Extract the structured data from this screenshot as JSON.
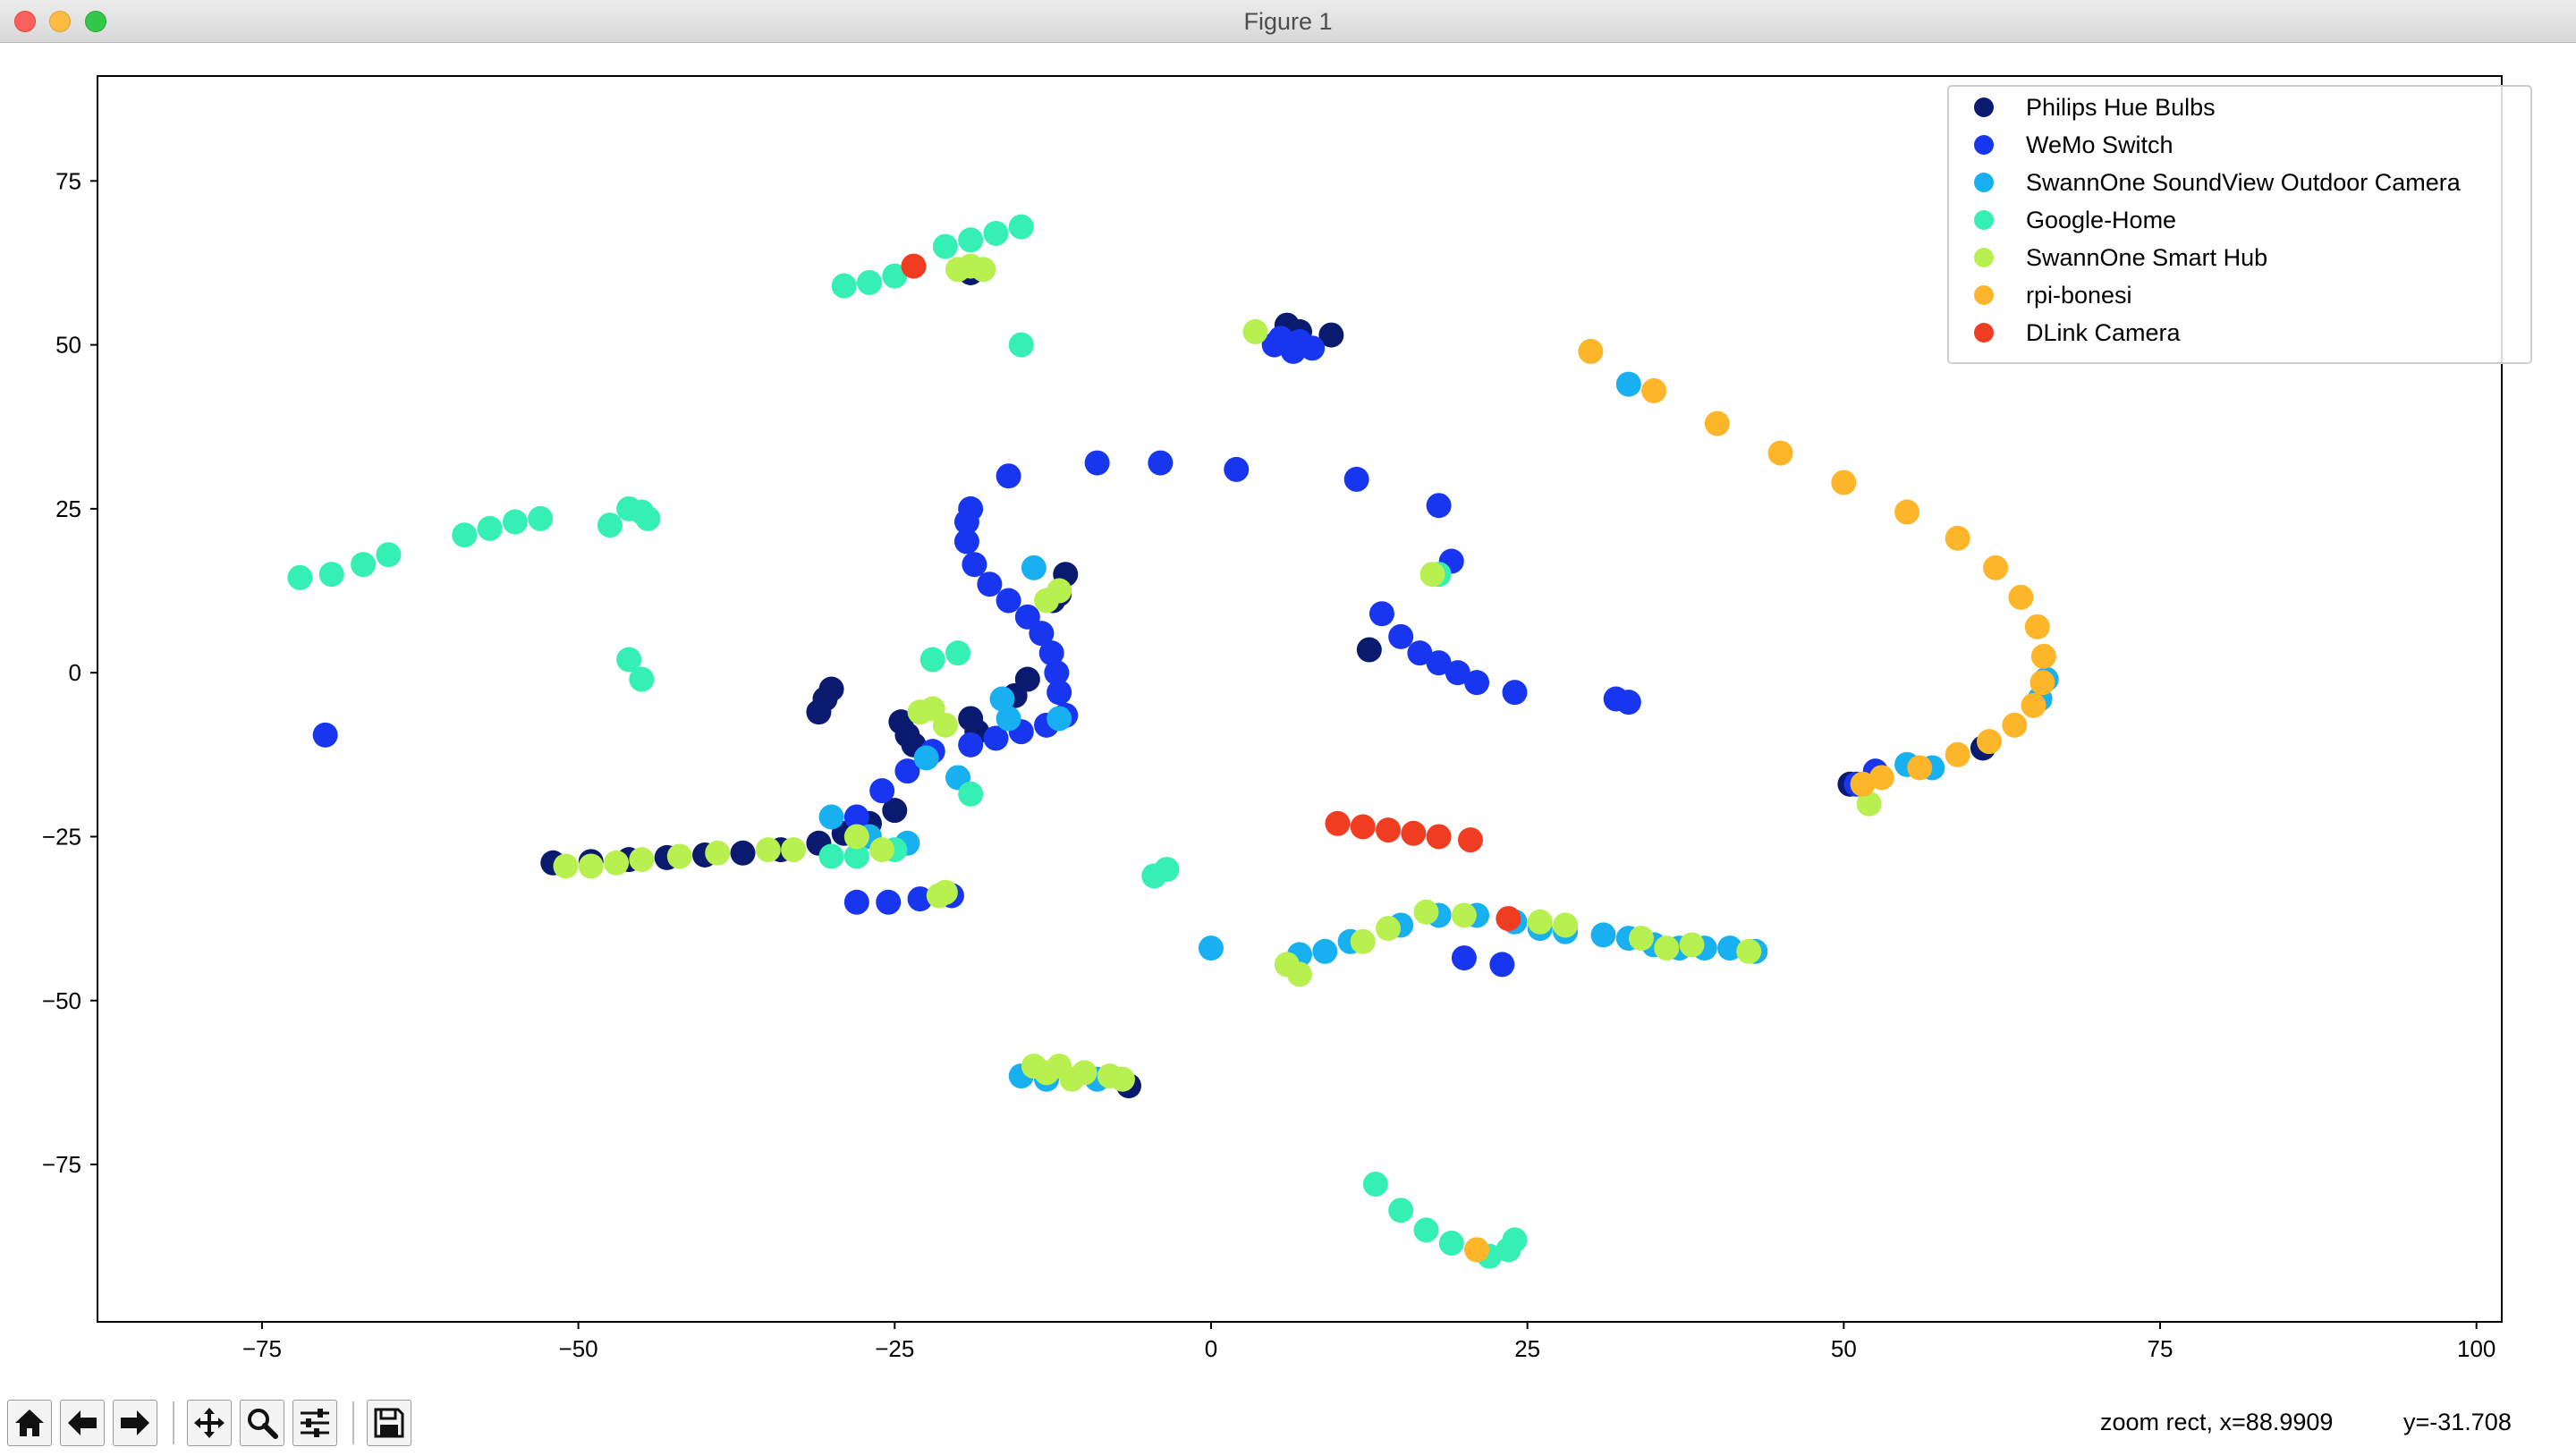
{
  "window": {
    "title": "Figure 1"
  },
  "toolbar": {
    "buttons": [
      {
        "name": "home-button",
        "icon": "home-icon"
      },
      {
        "name": "back-button",
        "icon": "arrow-left-icon"
      },
      {
        "name": "forward-button",
        "icon": "arrow-right-icon"
      },
      {
        "name": "pan-button",
        "icon": "move-icon"
      },
      {
        "name": "zoom-button",
        "icon": "magnifier-icon"
      },
      {
        "name": "configure-subplots-button",
        "icon": "sliders-icon"
      },
      {
        "name": "save-button",
        "icon": "floppy-disk-icon"
      }
    ],
    "mode_text": "zoom rect, x=88.9909",
    "y_text": "y=-31.708"
  },
  "chart_data": {
    "type": "scatter",
    "title": "",
    "xlabel": "",
    "ylabel": "",
    "xlim": [
      -88,
      102
    ],
    "ylim": [
      -99,
      91
    ],
    "x_ticks": [
      -75,
      -50,
      -25,
      0,
      25,
      50,
      75,
      100
    ],
    "y_ticks": [
      -75,
      -50,
      -25,
      0,
      25,
      50,
      75
    ],
    "x_tick_labels": [
      "−75",
      "−50",
      "−25",
      "0",
      "25",
      "50",
      "75",
      "100"
    ],
    "y_tick_labels": [
      "−75",
      "−50",
      "−25",
      "0",
      "25",
      "50",
      "75"
    ],
    "grid": false,
    "legend_position": "upper right",
    "series": [
      {
        "name": "Philips Hue Bulbs",
        "color": "#0a1a6e",
        "points": [
          [
            -52,
            -29
          ],
          [
            -49,
            -28.8
          ],
          [
            -46,
            -28.5
          ],
          [
            -43,
            -28.2
          ],
          [
            -40,
            -27.8
          ],
          [
            -37,
            -27.5
          ],
          [
            -34,
            -27
          ],
          [
            -31,
            -26
          ],
          [
            -29,
            -24.5
          ],
          [
            -27,
            -23
          ],
          [
            -25,
            -21
          ],
          [
            -31,
            -6
          ],
          [
            -30.5,
            -4
          ],
          [
            -30,
            -2.5
          ],
          [
            -24.5,
            -7.5
          ],
          [
            -24,
            -9.5
          ],
          [
            -23.5,
            -11
          ],
          [
            -19,
            -7
          ],
          [
            -18.5,
            -9
          ],
          [
            -15.5,
            -3.5
          ],
          [
            -14.5,
            -1
          ],
          [
            -11.5,
            15
          ],
          [
            -12,
            12
          ],
          [
            -12.5,
            11
          ],
          [
            -19,
            61
          ],
          [
            6,
            53
          ],
          [
            7,
            52
          ],
          [
            9.5,
            51.5
          ],
          [
            12.5,
            3.5
          ],
          [
            50.5,
            -17
          ],
          [
            61,
            -11.5
          ],
          [
            -6.5,
            -63
          ]
        ]
      },
      {
        "name": "WeMo Switch",
        "color": "#1836ef",
        "points": [
          [
            -28,
            -22
          ],
          [
            -26,
            -18
          ],
          [
            -24,
            -15
          ],
          [
            -22,
            -12
          ],
          [
            -19,
            -11
          ],
          [
            -17,
            -10
          ],
          [
            -15,
            -9
          ],
          [
            -13,
            -8
          ],
          [
            -11.5,
            -6.5
          ],
          [
            -12,
            -3
          ],
          [
            -12.2,
            0
          ],
          [
            -12.6,
            3
          ],
          [
            -13.4,
            6
          ],
          [
            -14.5,
            8.5
          ],
          [
            -16,
            11
          ],
          [
            -17.5,
            13.5
          ],
          [
            -18.7,
            16.5
          ],
          [
            -19.3,
            20
          ],
          [
            -19.3,
            23
          ],
          [
            -19,
            25
          ],
          [
            -28,
            -35
          ],
          [
            -25.5,
            -35
          ],
          [
            -23,
            -34.5
          ],
          [
            -20.5,
            -34
          ],
          [
            -70,
            -9.5
          ],
          [
            -16,
            30
          ],
          [
            -9,
            32
          ],
          [
            -4,
            32
          ],
          [
            2,
            31
          ],
          [
            11.5,
            29.5
          ],
          [
            18,
            25.5
          ],
          [
            19,
            17
          ],
          [
            5,
            50
          ],
          [
            6.5,
            49
          ],
          [
            8,
            49.5
          ],
          [
            5.5,
            51
          ],
          [
            7,
            50.5
          ],
          [
            13.5,
            9
          ],
          [
            15,
            5.5
          ],
          [
            16.5,
            3
          ],
          [
            18,
            1.5
          ],
          [
            19.5,
            0
          ],
          [
            21,
            -1.5
          ],
          [
            24,
            -3
          ],
          [
            32,
            -4
          ],
          [
            33,
            -4.5
          ],
          [
            23,
            -44.5
          ],
          [
            20,
            -43.5
          ],
          [
            51,
            -17
          ],
          [
            52.5,
            -15
          ]
        ]
      },
      {
        "name": "SwannOne SoundView Outdoor Camera",
        "color": "#18b0f0",
        "points": [
          [
            -30,
            -22
          ],
          [
            -27,
            -25
          ],
          [
            -24,
            -26
          ],
          [
            -22.5,
            -13
          ],
          [
            -16.5,
            -4
          ],
          [
            -16,
            -7
          ],
          [
            -20,
            -16
          ],
          [
            -14,
            16
          ],
          [
            -12,
            -7
          ],
          [
            0,
            -42
          ],
          [
            7,
            -43
          ],
          [
            9,
            -42.5
          ],
          [
            11,
            -41
          ],
          [
            15,
            -38.5
          ],
          [
            18,
            -37
          ],
          [
            21,
            -37
          ],
          [
            24,
            -38
          ],
          [
            26,
            -39
          ],
          [
            28,
            -39.5
          ],
          [
            31,
            -40
          ],
          [
            33,
            -40.5
          ],
          [
            35,
            -41.5
          ],
          [
            37,
            -42
          ],
          [
            39,
            -42
          ],
          [
            41,
            -42
          ],
          [
            43,
            -42.5
          ],
          [
            -15,
            -61.5
          ],
          [
            -9,
            -62
          ],
          [
            -13,
            -62
          ],
          [
            33,
            44
          ],
          [
            66,
            -1
          ],
          [
            65.5,
            -4
          ],
          [
            55,
            -14
          ],
          [
            57,
            -14.5
          ]
        ]
      },
      {
        "name": "Google-Home",
        "color": "#36f0b3",
        "points": [
          [
            -72,
            14.5
          ],
          [
            -69.5,
            15
          ],
          [
            -67,
            16.5
          ],
          [
            -65,
            18
          ],
          [
            -59,
            21
          ],
          [
            -57,
            22
          ],
          [
            -55,
            23
          ],
          [
            -53,
            23.5
          ],
          [
            -47.5,
            22.5
          ],
          [
            -46,
            25
          ],
          [
            -45,
            24.5
          ],
          [
            -44.5,
            23.5
          ],
          [
            -46,
            2
          ],
          [
            -45,
            -1
          ],
          [
            -29,
            59
          ],
          [
            -27,
            59.5
          ],
          [
            -25,
            60.5
          ],
          [
            -21,
            65
          ],
          [
            -19,
            66
          ],
          [
            -17,
            67
          ],
          [
            -15,
            68
          ],
          [
            -15,
            50
          ],
          [
            -22,
            2
          ],
          [
            -20,
            3
          ],
          [
            -19,
            -18.5
          ],
          [
            -30,
            -28
          ],
          [
            -28,
            -28
          ],
          [
            -25,
            -27
          ],
          [
            -3.5,
            -30
          ],
          [
            -4.5,
            -31
          ],
          [
            13,
            -78
          ],
          [
            15,
            -82
          ],
          [
            17,
            -85
          ],
          [
            19,
            -87
          ],
          [
            22,
            -89
          ],
          [
            23.5,
            -88
          ],
          [
            24,
            -86.5
          ],
          [
            18,
            15
          ]
        ]
      },
      {
        "name": "SwannOne Smart Hub",
        "color": "#b7f04f",
        "points": [
          [
            -51,
            -29.5
          ],
          [
            -49,
            -29.5
          ],
          [
            -47,
            -29
          ],
          [
            -45,
            -28.5
          ],
          [
            -42,
            -28
          ],
          [
            -39,
            -27.5
          ],
          [
            -35,
            -27
          ],
          [
            -33,
            -27
          ],
          [
            -28,
            -25
          ],
          [
            -23,
            -6
          ],
          [
            -22,
            -5.5
          ],
          [
            -21,
            -8
          ],
          [
            -26,
            -27
          ],
          [
            -21.5,
            -34
          ],
          [
            -21,
            -33.5
          ],
          [
            -13,
            11
          ],
          [
            -12,
            12.5
          ],
          [
            -20,
            61.5
          ],
          [
            -18,
            61.5
          ],
          [
            -19,
            62
          ],
          [
            -14,
            -60
          ],
          [
            -12,
            -60
          ],
          [
            -10,
            -61
          ],
          [
            -8,
            -61.5
          ],
          [
            -7,
            -62
          ],
          [
            -11,
            -62
          ],
          [
            -13,
            -61
          ],
          [
            6,
            -44.5
          ],
          [
            7,
            -46
          ],
          [
            12,
            -41
          ],
          [
            14,
            -39
          ],
          [
            17,
            -36.5
          ],
          [
            20,
            -37
          ],
          [
            26,
            -38
          ],
          [
            28,
            -38.5
          ],
          [
            34,
            -40.5
          ],
          [
            36,
            -42
          ],
          [
            38,
            -41.5
          ],
          [
            42.5,
            -42.5
          ],
          [
            52,
            -20
          ],
          [
            3.5,
            52
          ],
          [
            17.5,
            15
          ]
        ]
      },
      {
        "name": "rpi-bonesi",
        "color": "#fdb52a",
        "points": [
          [
            30,
            49
          ],
          [
            35,
            43
          ],
          [
            40,
            38
          ],
          [
            45,
            33.5
          ],
          [
            50,
            29
          ],
          [
            55,
            24.5
          ],
          [
            59,
            20.5
          ],
          [
            62,
            16
          ],
          [
            64,
            11.5
          ],
          [
            65.3,
            7
          ],
          [
            65.8,
            2.5
          ],
          [
            65.7,
            -1.5
          ],
          [
            65,
            -5
          ],
          [
            63.5,
            -8
          ],
          [
            61.5,
            -10.5
          ],
          [
            59,
            -12.5
          ],
          [
            56,
            -14.5
          ],
          [
            53,
            -16
          ],
          [
            51.5,
            -17
          ],
          [
            21,
            -88
          ]
        ]
      },
      {
        "name": "DLink Camera",
        "color": "#f03c20",
        "points": [
          [
            10,
            -23
          ],
          [
            12,
            -23.5
          ],
          [
            14,
            -24
          ],
          [
            16,
            -24.5
          ],
          [
            18,
            -25
          ],
          [
            20.5,
            -25.5
          ],
          [
            -23.5,
            62
          ],
          [
            23.5,
            -37.5
          ]
        ]
      }
    ]
  }
}
